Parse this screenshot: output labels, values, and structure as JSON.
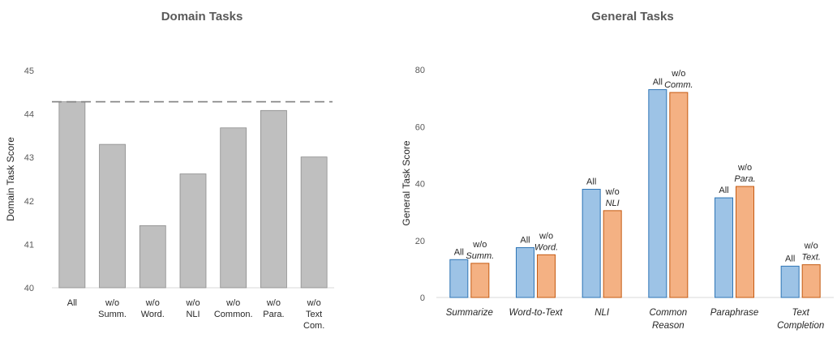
{
  "chart_data": [
    {
      "type": "bar",
      "title": "Domain Tasks",
      "ylabel": "Domain Task Score",
      "ylim": [
        40,
        45
      ],
      "yticks": [
        40,
        41,
        42,
        43,
        44,
        45
      ],
      "categories": [
        [
          "All"
        ],
        [
          "w/o",
          "Summ."
        ],
        [
          "w/o",
          "Word."
        ],
        [
          "w/o",
          "NLI"
        ],
        [
          "w/o",
          "Common."
        ],
        [
          "w/o",
          "Para."
        ],
        [
          "w/o",
          "Text",
          "Com."
        ]
      ],
      "values": [
        44.28,
        43.3,
        41.43,
        42.62,
        43.68,
        44.08,
        43.01
      ],
      "reference_line": 44.28,
      "colors": {
        "bar": "#bfbfbf",
        "bar_edge": "#8c8c8c",
        "reference_line": "#808080"
      }
    },
    {
      "type": "bar",
      "title": "General Tasks",
      "ylabel": "General Task Score",
      "ylim": [
        0,
        80
      ],
      "yticks": [
        0,
        20,
        40,
        60,
        80
      ],
      "categories": [
        [
          "Summarize"
        ],
        [
          "Word-to-Text"
        ],
        [
          "NLI"
        ],
        [
          "Common",
          "Reason"
        ],
        [
          "Paraphrase"
        ],
        [
          "Text",
          "Completion"
        ]
      ],
      "series": [
        {
          "values": [
            13.3,
            17.5,
            38.0,
            73.0,
            35.0,
            11.0
          ]
        },
        {
          "values": [
            12.0,
            15.0,
            30.5,
            72.0,
            39.0,
            11.5
          ]
        }
      ],
      "data_labels": [
        {
          "all": "All",
          "wo": "w/o",
          "task": "Summ."
        },
        {
          "all": "All",
          "wo": "w/o",
          "task": "Word."
        },
        {
          "all": "All",
          "wo": "w/o",
          "task": "NLI"
        },
        {
          "all": "All",
          "wo": "w/o",
          "task": "Comm."
        },
        {
          "all": "All",
          "wo": "w/o",
          "task": "Para."
        },
        {
          "all": "All",
          "wo": "w/o",
          "task": "Text."
        }
      ],
      "colors": {
        "all": "#9dc3e6",
        "all_edge": "#2e75b6",
        "wo": "#f4b183",
        "wo_edge": "#c55a11"
      }
    }
  ]
}
